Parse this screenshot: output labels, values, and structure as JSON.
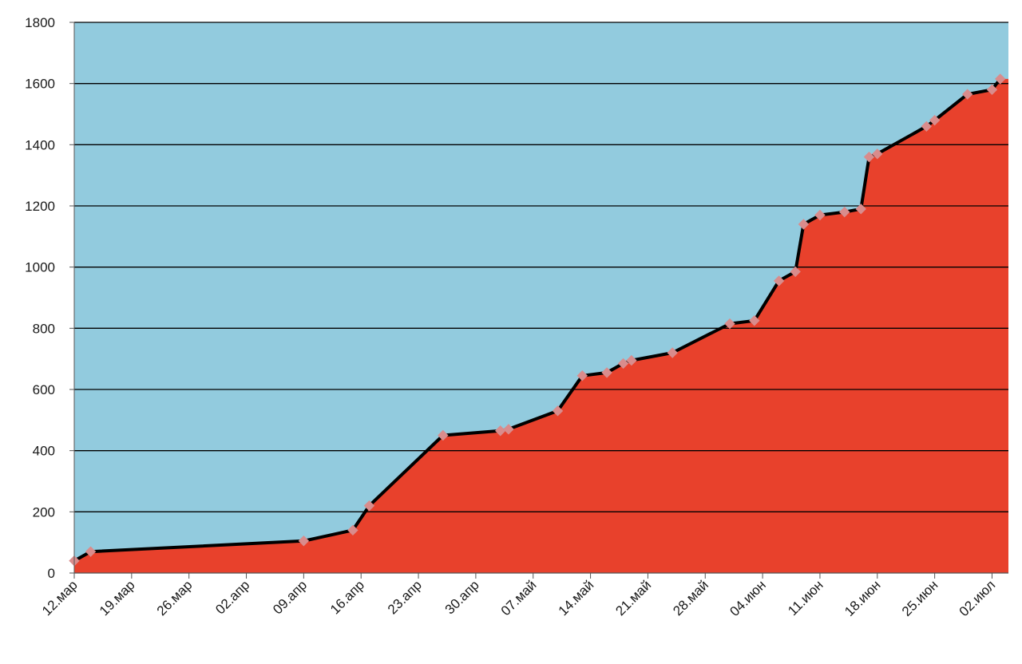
{
  "chart_data": {
    "type": "area",
    "title": "",
    "xlabel": "",
    "ylabel": "",
    "ylim": [
      0,
      1800
    ],
    "yticks": [
      0,
      200,
      400,
      600,
      800,
      1000,
      1200,
      1400,
      1600,
      1800
    ],
    "xlim": [
      "2020-03-12",
      "2020-07-04"
    ],
    "xticks": [
      {
        "date": "2020-03-12",
        "label": "12.мар"
      },
      {
        "date": "2020-03-19",
        "label": "19.мар"
      },
      {
        "date": "2020-03-26",
        "label": "26.мар"
      },
      {
        "date": "2020-04-02",
        "label": "02.апр"
      },
      {
        "date": "2020-04-09",
        "label": "09.апр"
      },
      {
        "date": "2020-04-16",
        "label": "16.апр"
      },
      {
        "date": "2020-04-23",
        "label": "23.апр"
      },
      {
        "date": "2020-04-30",
        "label": "30.апр"
      },
      {
        "date": "2020-05-07",
        "label": "07.май"
      },
      {
        "date": "2020-05-14",
        "label": "14.май"
      },
      {
        "date": "2020-05-21",
        "label": "21.май"
      },
      {
        "date": "2020-05-28",
        "label": "28.май"
      },
      {
        "date": "2020-06-04",
        "label": "04.июн"
      },
      {
        "date": "2020-06-11",
        "label": "11.июн"
      },
      {
        "date": "2020-06-18",
        "label": "18.июн"
      },
      {
        "date": "2020-06-25",
        "label": "25.июн"
      },
      {
        "date": "2020-07-02",
        "label": "02.июл"
      }
    ],
    "grid": true,
    "legend": "none",
    "colors": {
      "background": "#92cbde",
      "area": "#e8412c",
      "line": "#000000",
      "marker": "#d98c8c",
      "gridline": "#000000"
    },
    "series": [
      {
        "points": [
          {
            "x": "2020-03-12",
            "y": 40
          },
          {
            "x": "2020-03-14",
            "y": 70
          },
          {
            "x": "2020-04-09",
            "y": 105
          },
          {
            "x": "2020-04-15",
            "y": 140
          },
          {
            "x": "2020-04-17",
            "y": 220
          },
          {
            "x": "2020-04-26",
            "y": 450
          },
          {
            "x": "2020-05-03",
            "y": 465
          },
          {
            "x": "2020-05-04",
            "y": 470
          },
          {
            "x": "2020-05-10",
            "y": 530
          },
          {
            "x": "2020-05-13",
            "y": 645
          },
          {
            "x": "2020-05-16",
            "y": 655
          },
          {
            "x": "2020-05-18",
            "y": 685
          },
          {
            "x": "2020-05-19",
            "y": 695
          },
          {
            "x": "2020-05-24",
            "y": 720
          },
          {
            "x": "2020-05-31",
            "y": 815
          },
          {
            "x": "2020-06-03",
            "y": 825
          },
          {
            "x": "2020-06-06",
            "y": 955
          },
          {
            "x": "2020-06-08",
            "y": 985
          },
          {
            "x": "2020-06-09",
            "y": 1140
          },
          {
            "x": "2020-06-11",
            "y": 1170
          },
          {
            "x": "2020-06-14",
            "y": 1180
          },
          {
            "x": "2020-06-16",
            "y": 1190
          },
          {
            "x": "2020-06-17",
            "y": 1360
          },
          {
            "x": "2020-06-18",
            "y": 1370
          },
          {
            "x": "2020-06-24",
            "y": 1460
          },
          {
            "x": "2020-06-25",
            "y": 1480
          },
          {
            "x": "2020-06-29",
            "y": 1565
          },
          {
            "x": "2020-07-02",
            "y": 1580
          },
          {
            "x": "2020-07-03",
            "y": 1615
          }
        ]
      }
    ]
  }
}
